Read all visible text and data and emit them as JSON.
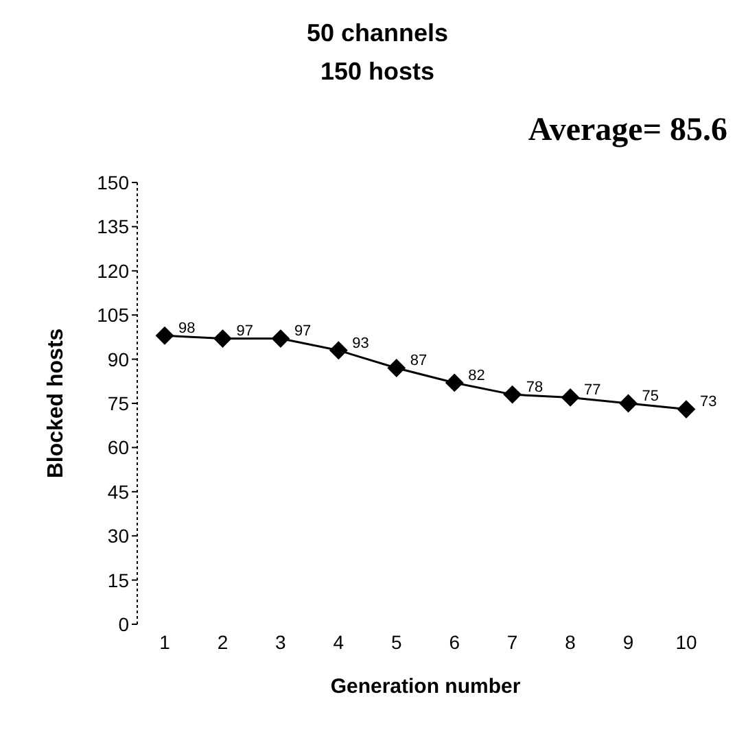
{
  "chart_data": {
    "type": "line",
    "title": "50 channels\n150 hosts",
    "xlabel": "Generation number",
    "ylabel": "Blocked hosts",
    "annotations": [
      "Average= 85.6"
    ],
    "categories": [
      "1",
      "2",
      "3",
      "4",
      "5",
      "6",
      "7",
      "8",
      "9",
      "10"
    ],
    "series": [
      {
        "color": "#000000",
        "values": [
          98,
          97,
          97,
          93,
          87,
          82,
          78,
          77,
          75,
          73
        ]
      }
    ],
    "ylim": [
      0,
      150
    ],
    "yticks": [
      0,
      15,
      30,
      45,
      60,
      75,
      90,
      105,
      120,
      135,
      150
    ],
    "grid": false,
    "legend": false,
    "marker": "diamond",
    "line_style": "solid",
    "data_labels": true
  }
}
